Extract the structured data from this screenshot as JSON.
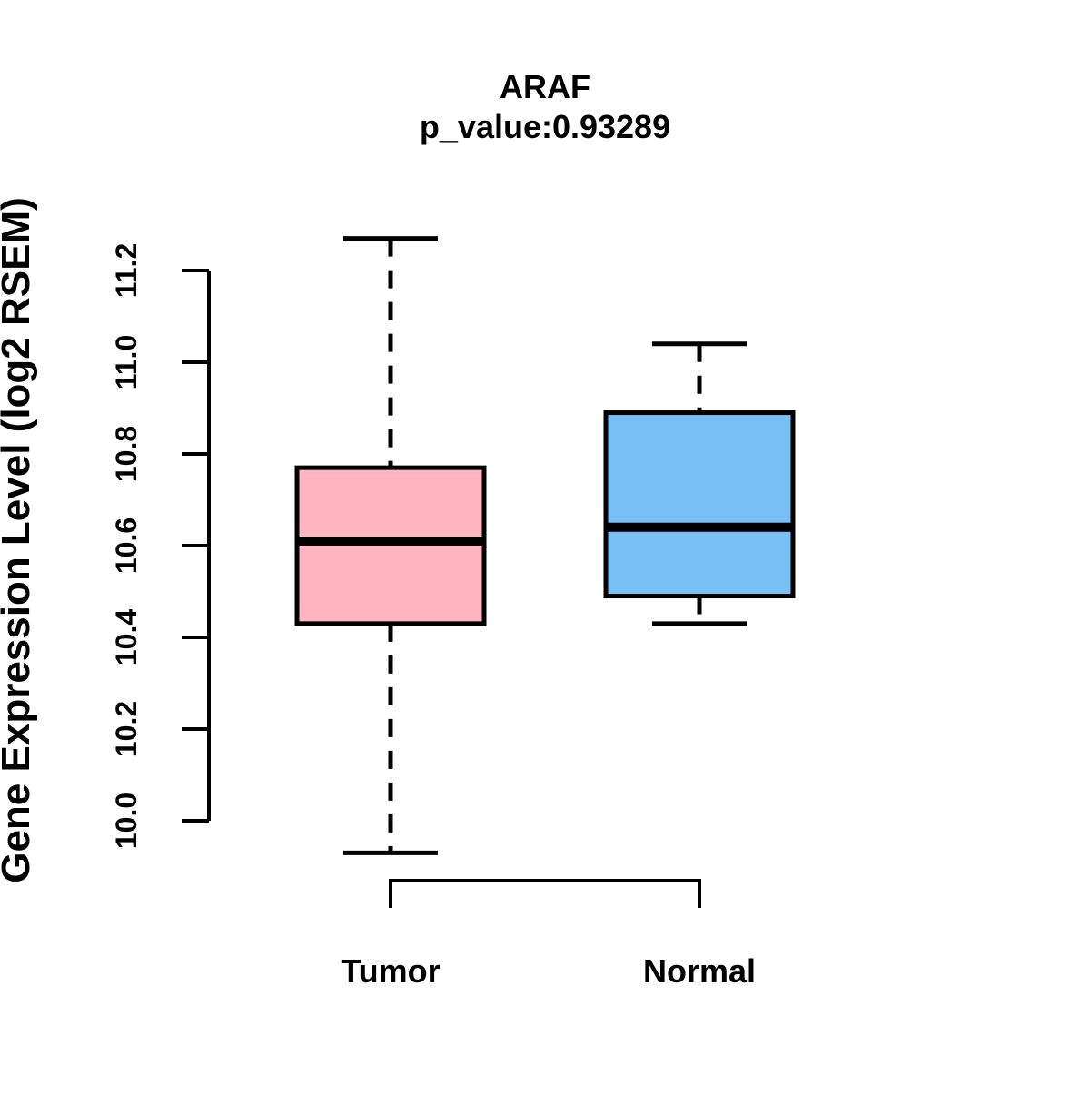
{
  "figure": {
    "background_color": "#FFFFFF",
    "title": "ARAF",
    "subtitle": "p_value:0.93289",
    "ylabel": "Gene Expression Level (log2 RSEM)"
  },
  "chart_data": {
    "type": "boxplot",
    "title": "ARAF",
    "subtitle": "p_value:0.93289",
    "xlabel": "",
    "ylabel": "Gene Expression Level (log2 RSEM)",
    "ytick_labels": [
      "10.0",
      "10.2",
      "10.4",
      "10.6",
      "10.8",
      "11.0",
      "11.2"
    ],
    "ylim": [
      9.85,
      11.35
    ],
    "grid": false,
    "legend": "none",
    "categories": [
      "Tumor",
      "Normal"
    ],
    "series": [
      {
        "name": "Tumor",
        "fill_color": "#FFB6C1",
        "lower_whisker": 9.93,
        "q1": 10.43,
        "median": 10.61,
        "q3": 10.77,
        "upper_whisker": 11.27
      },
      {
        "name": "Normal",
        "fill_color": "#77BFF5",
        "lower_whisker": 10.43,
        "q1": 10.49,
        "median": 10.64,
        "q3": 10.89,
        "upper_whisker": 11.04
      }
    ],
    "box_border_color": "#000000",
    "median_color": "#000000",
    "whisker_style": "dashed",
    "axis_color": "#000000"
  }
}
